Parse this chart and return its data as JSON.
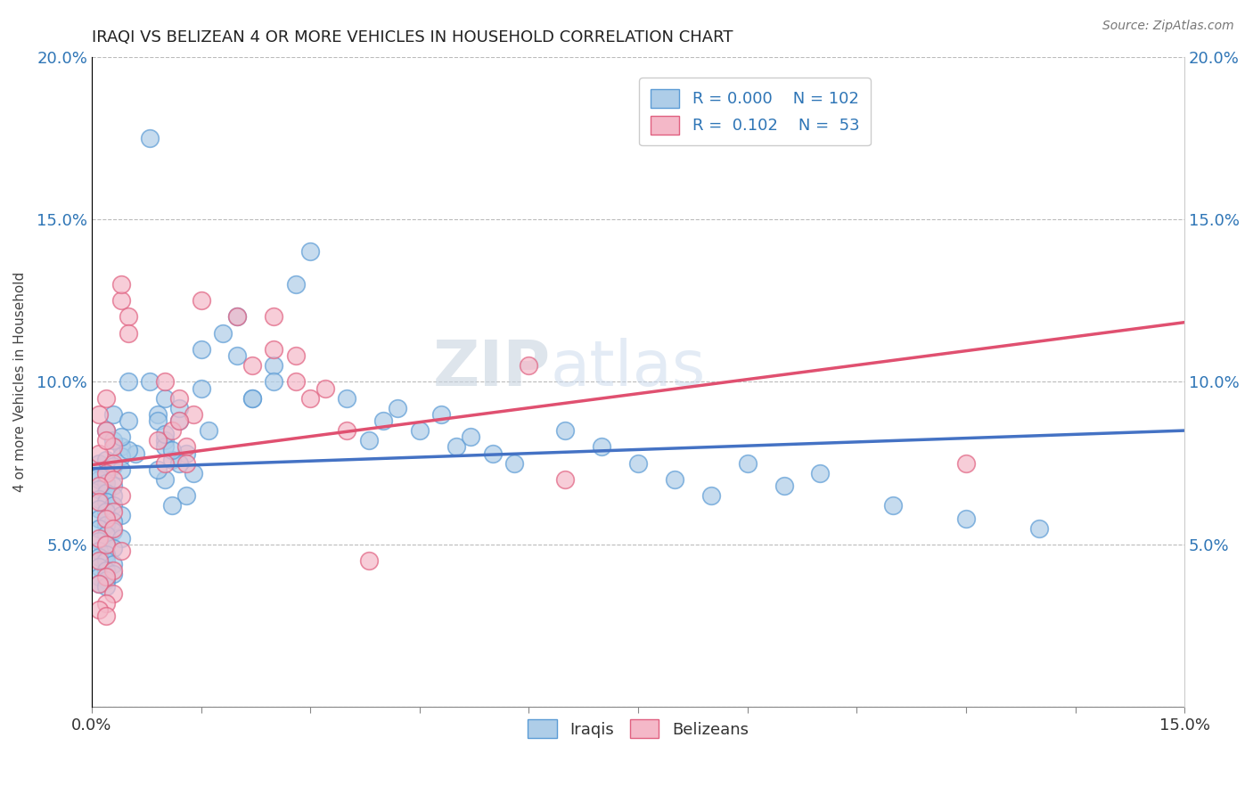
{
  "title": "IRAQI VS BELIZEAN 4 OR MORE VEHICLES IN HOUSEHOLD CORRELATION CHART",
  "source_text": "Source: ZipAtlas.com",
  "ylabel": "4 or more Vehicles in Household",
  "xlim": [
    0.0,
    0.15
  ],
  "ylim": [
    0.0,
    0.2
  ],
  "xtick_positions": [
    0.0,
    0.015,
    0.03,
    0.045,
    0.06,
    0.075,
    0.09,
    0.105,
    0.12,
    0.135,
    0.15
  ],
  "xtick_labels": [
    "0.0%",
    "",
    "",
    "",
    "",
    "",
    "",
    "",
    "",
    "",
    "15.0%"
  ],
  "ytick_positions": [
    0.0,
    0.05,
    0.1,
    0.15,
    0.2
  ],
  "ytick_labels": [
    "",
    "5.0%",
    "10.0%",
    "15.0%",
    "20.0%"
  ],
  "legend_R_iraqis": "0.000",
  "legend_N_iraqis": "102",
  "legend_R_belizeans": "0.102",
  "legend_N_belizeans": "53",
  "color_iraqis_face": "#AECDE8",
  "color_iraqis_edge": "#5B9BD5",
  "color_belizeans_face": "#F4B8C8",
  "color_belizeans_edge": "#E06080",
  "line_color_iraqis": "#4472C4",
  "line_color_belizeans": "#E05070",
  "watermark_ZIP": "ZIP",
  "watermark_atlas": "atlas",
  "iraqis_x": [
    0.003,
    0.005,
    0.002,
    0.004,
    0.001,
    0.006,
    0.003,
    0.002,
    0.004,
    0.001,
    0.002,
    0.003,
    0.001,
    0.004,
    0.002,
    0.003,
    0.001,
    0.005,
    0.002,
    0.003,
    0.001,
    0.004,
    0.002,
    0.003,
    0.001,
    0.005,
    0.002,
    0.004,
    0.001,
    0.003,
    0.002,
    0.001,
    0.003,
    0.002,
    0.004,
    0.001,
    0.002,
    0.003,
    0.001,
    0.002,
    0.001,
    0.002,
    0.003,
    0.001,
    0.002,
    0.003,
    0.001,
    0.002,
    0.001,
    0.002,
    0.01,
    0.012,
    0.008,
    0.015,
    0.01,
    0.013,
    0.011,
    0.014,
    0.009,
    0.016,
    0.01,
    0.012,
    0.01,
    0.013,
    0.011,
    0.009,
    0.012,
    0.01,
    0.011,
    0.009,
    0.015,
    0.02,
    0.018,
    0.022,
    0.025,
    0.028,
    0.03,
    0.02,
    0.022,
    0.025,
    0.035,
    0.04,
    0.042,
    0.038,
    0.045,
    0.05,
    0.055,
    0.048,
    0.052,
    0.058,
    0.065,
    0.07,
    0.075,
    0.08,
    0.085,
    0.09,
    0.095,
    0.1,
    0.11,
    0.12,
    0.13,
    0.008
  ],
  "iraqis_y": [
    0.09,
    0.1,
    0.085,
    0.08,
    0.075,
    0.078,
    0.082,
    0.072,
    0.077,
    0.07,
    0.076,
    0.074,
    0.071,
    0.073,
    0.069,
    0.068,
    0.067,
    0.079,
    0.066,
    0.065,
    0.064,
    0.083,
    0.063,
    0.062,
    0.061,
    0.088,
    0.06,
    0.059,
    0.058,
    0.057,
    0.056,
    0.055,
    0.054,
    0.053,
    0.052,
    0.051,
    0.05,
    0.049,
    0.048,
    0.047,
    0.046,
    0.045,
    0.044,
    0.043,
    0.042,
    0.041,
    0.04,
    0.039,
    0.038,
    0.037,
    0.095,
    0.088,
    0.1,
    0.098,
    0.082,
    0.078,
    0.076,
    0.072,
    0.09,
    0.085,
    0.08,
    0.075,
    0.07,
    0.065,
    0.062,
    0.088,
    0.092,
    0.084,
    0.079,
    0.073,
    0.11,
    0.12,
    0.115,
    0.095,
    0.105,
    0.13,
    0.14,
    0.108,
    0.095,
    0.1,
    0.095,
    0.088,
    0.092,
    0.082,
    0.085,
    0.08,
    0.078,
    0.09,
    0.083,
    0.075,
    0.085,
    0.08,
    0.075,
    0.07,
    0.065,
    0.075,
    0.068,
    0.072,
    0.062,
    0.058,
    0.055,
    0.175
  ],
  "belizeans_x": [
    0.002,
    0.004,
    0.001,
    0.003,
    0.002,
    0.005,
    0.003,
    0.001,
    0.004,
    0.002,
    0.003,
    0.001,
    0.004,
    0.002,
    0.003,
    0.001,
    0.005,
    0.002,
    0.003,
    0.001,
    0.002,
    0.004,
    0.001,
    0.003,
    0.002,
    0.001,
    0.003,
    0.002,
    0.001,
    0.002,
    0.01,
    0.012,
    0.015,
    0.013,
    0.011,
    0.014,
    0.012,
    0.01,
    0.009,
    0.013,
    0.02,
    0.025,
    0.022,
    0.03,
    0.028,
    0.032,
    0.035,
    0.025,
    0.028,
    0.038,
    0.06,
    0.065,
    0.12
  ],
  "belizeans_y": [
    0.095,
    0.125,
    0.09,
    0.08,
    0.085,
    0.12,
    0.075,
    0.078,
    0.13,
    0.072,
    0.07,
    0.068,
    0.065,
    0.082,
    0.06,
    0.063,
    0.115,
    0.058,
    0.055,
    0.052,
    0.05,
    0.048,
    0.045,
    0.042,
    0.04,
    0.038,
    0.035,
    0.032,
    0.03,
    0.028,
    0.1,
    0.095,
    0.125,
    0.08,
    0.085,
    0.09,
    0.088,
    0.075,
    0.082,
    0.075,
    0.12,
    0.11,
    0.105,
    0.095,
    0.1,
    0.098,
    0.085,
    0.12,
    0.108,
    0.045,
    0.105,
    0.07,
    0.075
  ]
}
